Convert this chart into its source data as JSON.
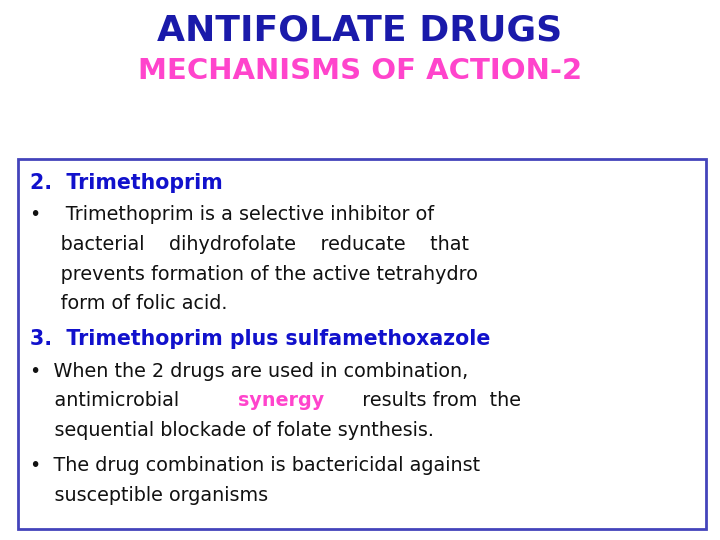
{
  "title1": "ANTIFOLATE DRUGS",
  "title1_color": "#1a1aaa",
  "title2": "MECHANISMS OF ACTION-2",
  "title2_color": "#ff44cc",
  "bg_color": "#ffffff",
  "box_edge_color": "#4444bb",
  "section2_label": "2.  Trimethoprim",
  "section2_color": "#1111cc",
  "bullet1_lines": [
    "•    Trimethoprim is a selective inhibitor of",
    "     bacterial    dihydrofolate    reducate    that",
    "     prevents formation of the active tetrahydro",
    "     form of folic acid."
  ],
  "bullet1_color": "#111111",
  "section3_label": "3.  Trimethoprim plus sulfamethoxazole",
  "section3_color": "#1111cc",
  "bullet2_line1": "•  When the 2 drugs are used in combination,",
  "bullet2_line2_pre": "    antimicrobial  ",
  "bullet2_synergy": "synergy",
  "bullet2_synergy_color": "#ff44cc",
  "bullet2_line2_post": "  results from  the",
  "bullet2_line3": "    sequential blockade of folate synthesis.",
  "bullet2_color": "#111111",
  "bullet3_lines": [
    "•  The drug combination is bactericidal against",
    "    susceptible organisms"
  ],
  "bullet3_color": "#111111"
}
